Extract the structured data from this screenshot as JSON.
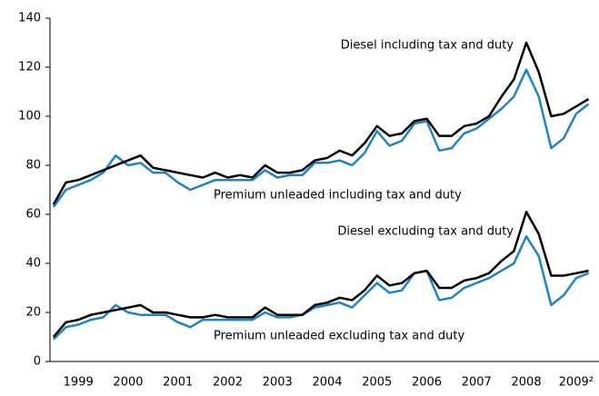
{
  "chart_data": {
    "type": "line",
    "x": [
      1999,
      1999.25,
      1999.5,
      1999.75,
      2000,
      2000.25,
      2000.5,
      2000.75,
      2001,
      2001.25,
      2001.5,
      2001.75,
      2002,
      2002.25,
      2002.5,
      2002.75,
      2003,
      2003.25,
      2003.5,
      2003.75,
      2004,
      2004.25,
      2004.5,
      2004.75,
      2005,
      2005.25,
      2005.5,
      2005.75,
      2006,
      2006.25,
      2006.5,
      2006.75,
      2007,
      2007.25,
      2007.5,
      2007.75,
      2008,
      2008.25,
      2008.5,
      2008.75,
      2009,
      2009.25,
      2009.5,
      2009.75
    ],
    "series": [
      {
        "name": "Diesel including tax and duty",
        "color": "#000000",
        "values": [
          64,
          73,
          74,
          76,
          78,
          80,
          82,
          84,
          79,
          78,
          77,
          76,
          75,
          77,
          75,
          76,
          75,
          80,
          77,
          77,
          78,
          82,
          83,
          86,
          84,
          89,
          96,
          92,
          93,
          98,
          99,
          92,
          92,
          96,
          97,
          100,
          108,
          115,
          130,
          118,
          100,
          101,
          104,
          107
        ]
      },
      {
        "name": "Premium unleaded including tax and duty",
        "color": "#1f83c4",
        "values": [
          63,
          70,
          72,
          74,
          77,
          84,
          80,
          81,
          77,
          77,
          73,
          70,
          72,
          74,
          74,
          74,
          74,
          78,
          75,
          76,
          76,
          81,
          81,
          82,
          80,
          85,
          94,
          88,
          90,
          97,
          98,
          86,
          87,
          93,
          95,
          99,
          103,
          108,
          119,
          108,
          87,
          91,
          101,
          105
        ]
      },
      {
        "name": "Diesel excluding tax and duty",
        "color": "#000000",
        "values": [
          10,
          16,
          17,
          19,
          20,
          21,
          22,
          23,
          20,
          20,
          19,
          18,
          18,
          19,
          18,
          18,
          18,
          22,
          19,
          19,
          19,
          23,
          24,
          26,
          25,
          29,
          35,
          31,
          32,
          36,
          37,
          30,
          30,
          33,
          34,
          36,
          41,
          45,
          61,
          52,
          35,
          35,
          36,
          37
        ]
      },
      {
        "name": "Premium unleaded excluding tax and duty",
        "color": "#1f83c4",
        "values": [
          9,
          14,
          15,
          17,
          18,
          23,
          20,
          19,
          19,
          19,
          16,
          14,
          17,
          17,
          17,
          17,
          17,
          20,
          18,
          18,
          19,
          22,
          23,
          24,
          22,
          27,
          32,
          28,
          29,
          36,
          37,
          25,
          26,
          30,
          32,
          34,
          37,
          40,
          51,
          43,
          23,
          27,
          34,
          36
        ]
      }
    ],
    "xlim": [
      1998.93,
      2009.96
    ],
    "xticks": [
      {
        "value": 1999.5,
        "label": "1999"
      },
      {
        "value": 2000.5,
        "label": "2000"
      },
      {
        "value": 2001.5,
        "label": "2001"
      },
      {
        "value": 2002.5,
        "label": "2002"
      },
      {
        "value": 2003.5,
        "label": "2003"
      },
      {
        "value": 2004.5,
        "label": "2004"
      },
      {
        "value": 2005.5,
        "label": "2005"
      },
      {
        "value": 2006.5,
        "label": "2006"
      },
      {
        "value": 2007.5,
        "label": "2007"
      },
      {
        "value": 2008.5,
        "label": "2008"
      },
      {
        "value": 2009.5,
        "label": "2009²"
      }
    ],
    "ylim": [
      0,
      140
    ],
    "yticks": [
      0,
      20,
      40,
      60,
      80,
      100,
      120,
      140
    ]
  }
}
